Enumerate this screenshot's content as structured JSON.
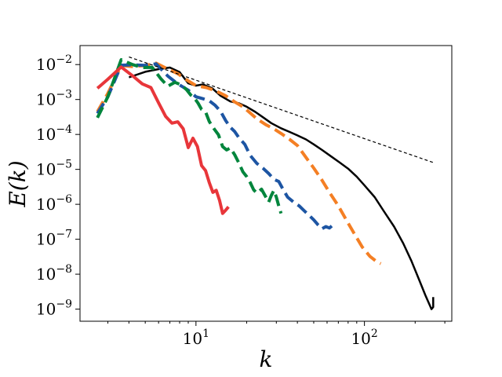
{
  "chart_data": {
    "type": "line",
    "title": "",
    "xlabel": "k",
    "ylabel": "E(k)",
    "xscale": "log",
    "yscale": "log",
    "xlim": [
      2.05,
      330
    ],
    "ylim": [
      4.5e-10,
      0.035
    ],
    "grid": false,
    "x_ticks": [
      {
        "value": 10,
        "mantissa": "10",
        "exp": "1"
      },
      {
        "value": 100,
        "mantissa": "10",
        "exp": "2"
      }
    ],
    "y_ticks": [
      {
        "value": 1e-09,
        "mantissa": "10",
        "exp": "−9"
      },
      {
        "value": 1e-08,
        "mantissa": "10",
        "exp": "−8"
      },
      {
        "value": 1e-07,
        "mantissa": "10",
        "exp": "−7"
      },
      {
        "value": 1e-06,
        "mantissa": "10",
        "exp": "−6"
      },
      {
        "value": 1e-05,
        "mantissa": "10",
        "exp": "−5"
      },
      {
        "value": 0.0001,
        "mantissa": "10",
        "exp": "−4"
      },
      {
        "value": 0.001,
        "mantissa": "10",
        "exp": "−3"
      },
      {
        "value": 0.01,
        "mantissa": "10",
        "exp": "−2"
      }
    ],
    "series": [
      {
        "color": "#000000",
        "dash": "solid",
        "width": 2.5,
        "points": [
          [
            4.0,
            0.0043
          ],
          [
            5.0,
            0.0062
          ],
          [
            6.0,
            0.0074
          ],
          [
            7.0,
            0.0082
          ],
          [
            8.0,
            0.0061
          ],
          [
            9.0,
            0.0029
          ],
          [
            10.0,
            0.0025
          ],
          [
            11.0,
            0.0027
          ],
          [
            12.5,
            0.0021
          ],
          [
            14.0,
            0.00128
          ],
          [
            16.0,
            0.00088
          ],
          [
            18.0,
            0.00078
          ],
          [
            20.0,
            0.00062
          ],
          [
            22.5,
            0.00044
          ],
          [
            25.0,
            0.00031
          ],
          [
            28.0,
            0.00021
          ],
          [
            32.0,
            0.00015
          ],
          [
            36.0,
            0.000118
          ],
          [
            40.0,
            9.4e-05
          ],
          [
            45.0,
            7.2e-05
          ],
          [
            50.0,
            5.2e-05
          ],
          [
            56.0,
            3.6e-05
          ],
          [
            63.0,
            2.4e-05
          ],
          [
            71.0,
            1.6e-05
          ],
          [
            80.0,
            1.05e-05
          ],
          [
            90.0,
            6.2e-06
          ],
          [
            100.0,
            3.5e-06
          ],
          [
            115.0,
            1.6e-06
          ],
          [
            130.0,
            6.5e-07
          ],
          [
            150.0,
            2.3e-07
          ],
          [
            170.0,
            7.6e-08
          ],
          [
            190.0,
            2.4e-08
          ],
          [
            210.0,
            7.4e-09
          ],
          [
            230.0,
            2.5e-09
          ],
          [
            245.0,
            1.25e-09
          ],
          [
            250.0,
            1e-09
          ],
          [
            256.0,
            1.15e-09
          ],
          [
            256.0,
            2.2e-09
          ]
        ]
      },
      {
        "color": "#f47f24",
        "dash": "dashed",
        "width": 4,
        "points": [
          [
            2.6,
            0.00045
          ],
          [
            3.0,
            0.0015
          ],
          [
            3.6,
            0.0094
          ],
          [
            4.2,
            0.0088
          ],
          [
            5.0,
            0.0094
          ],
          [
            5.8,
            0.011
          ],
          [
            6.8,
            0.0075
          ],
          [
            7.8,
            0.0055
          ],
          [
            9.0,
            0.0034
          ],
          [
            10.0,
            0.0025
          ],
          [
            11.5,
            0.0022
          ],
          [
            13.0,
            0.0018
          ],
          [
            15.0,
            0.00128
          ],
          [
            17.0,
            0.00085
          ],
          [
            19.0,
            0.00062
          ],
          [
            21.0,
            0.00041
          ],
          [
            23.0,
            0.00028
          ],
          [
            26.0,
            0.00019
          ],
          [
            29.0,
            0.000145
          ],
          [
            32.0,
            0.000107
          ],
          [
            36.0,
            7.2e-05
          ],
          [
            40.0,
            4.8e-05
          ],
          [
            45.0,
            2.2e-05
          ],
          [
            50.0,
            1.09e-05
          ],
          [
            56.0,
            4.9e-06
          ],
          [
            62.0,
            2.2e-06
          ],
          [
            70.0,
            9e-07
          ],
          [
            78.0,
            3.6e-07
          ],
          [
            87.0,
            1.45e-07
          ],
          [
            97.0,
            6e-08
          ],
          [
            108.0,
            3.2e-08
          ],
          [
            118.0,
            2.3e-08
          ],
          [
            125.0,
            2e-08
          ]
        ]
      },
      {
        "color": "#1d55a3",
        "dash": "dashed",
        "width": 4,
        "points": [
          [
            2.6,
            0.0004
          ],
          [
            3.0,
            0.0012
          ],
          [
            3.6,
            0.0096
          ],
          [
            4.2,
            0.0098
          ],
          [
            5.0,
            0.0095
          ],
          [
            5.8,
            0.0105
          ],
          [
            6.8,
            0.0047
          ],
          [
            7.8,
            0.0028
          ],
          [
            9.0,
            0.00185
          ],
          [
            10.0,
            0.0012
          ],
          [
            11.0,
            0.00105
          ],
          [
            12.0,
            0.00092
          ],
          [
            13.0,
            0.00068
          ],
          [
            14.0,
            0.00046
          ],
          [
            15.0,
            0.00025
          ],
          [
            16.0,
            0.00016
          ],
          [
            17.0,
            0.00012
          ],
          [
            18.0,
            8e-05
          ],
          [
            19.5,
            5.2e-05
          ],
          [
            21.0,
            2.5e-05
          ],
          [
            23.0,
            1.48e-05
          ],
          [
            25.0,
            1.08e-05
          ],
          [
            27.0,
            7.6e-06
          ],
          [
            29.0,
            5.2e-06
          ],
          [
            31.0,
            4.5e-06
          ],
          [
            33.0,
            2.6e-06
          ],
          [
            35.0,
            1.6e-06
          ],
          [
            38.0,
            1.15e-06
          ],
          [
            41.0,
            9e-07
          ],
          [
            44.0,
            6.5e-07
          ],
          [
            47.0,
            4.8e-07
          ],
          [
            50.0,
            3.6e-07
          ],
          [
            53.0,
            2.6e-07
          ],
          [
            56.0,
            2e-07
          ],
          [
            59.0,
            2.3e-07
          ],
          [
            62.0,
            2.1e-07
          ],
          [
            64.0,
            2.4e-07
          ]
        ]
      },
      {
        "color": "#00853c",
        "dash": "dashed",
        "width": 4,
        "points": [
          [
            2.6,
            0.0003
          ],
          [
            3.0,
            0.0012
          ],
          [
            3.6,
            0.0138
          ],
          [
            4.2,
            0.01
          ],
          [
            4.8,
            0.0082
          ],
          [
            5.5,
            0.0083
          ],
          [
            6.2,
            0.0039
          ],
          [
            6.8,
            0.0024
          ],
          [
            7.5,
            0.0031
          ],
          [
            8.2,
            0.0026
          ],
          [
            8.8,
            0.0019
          ],
          [
            9.3,
            0.00135
          ],
          [
            9.8,
            0.0011
          ],
          [
            10.3,
            0.00078
          ],
          [
            10.8,
            0.00052
          ],
          [
            11.4,
            0.00044
          ],
          [
            12.0,
            0.000235
          ],
          [
            12.8,
            0.000145
          ],
          [
            13.6,
            9.8e-05
          ],
          [
            14.4,
            4.5e-05
          ],
          [
            15.2,
            3.6e-05
          ],
          [
            16.0,
            4.1e-05
          ],
          [
            17.0,
            2.6e-05
          ],
          [
            18.0,
            1.5e-05
          ],
          [
            19.0,
            8.5e-06
          ],
          [
            20.0,
            6.2e-06
          ],
          [
            21.0,
            4.2e-06
          ],
          [
            22.0,
            2.6e-06
          ],
          [
            23.0,
            2.1e-06
          ],
          [
            24.5,
            2.7e-06
          ],
          [
            26.0,
            1.6e-06
          ],
          [
            27.0,
            1.15e-06
          ],
          [
            28.0,
            1.8e-06
          ],
          [
            29.0,
            2.5e-06
          ],
          [
            30.0,
            1.6e-06
          ],
          [
            31.0,
            9e-07
          ],
          [
            32.0,
            5.5e-07
          ]
        ]
      },
      {
        "color": "#e8363a",
        "dash": "solid",
        "width": 4,
        "points": [
          [
            2.6,
            0.0021
          ],
          [
            3.0,
            0.0038
          ],
          [
            3.6,
            0.0085
          ],
          [
            4.2,
            0.0048
          ],
          [
            4.8,
            0.0028
          ],
          [
            5.4,
            0.0022
          ],
          [
            6.0,
            0.0008
          ],
          [
            6.6,
            0.00033
          ],
          [
            7.2,
            0.00021
          ],
          [
            7.8,
            0.00023
          ],
          [
            8.4,
            0.000145
          ],
          [
            9.0,
            4.2e-05
          ],
          [
            9.6,
            7.8e-05
          ],
          [
            10.2,
            4.5e-05
          ],
          [
            10.8,
            1.28e-05
          ],
          [
            11.4,
            9.2e-06
          ],
          [
            12.0,
            4.2e-06
          ],
          [
            12.6,
            2.2e-06
          ],
          [
            13.2,
            2.5e-06
          ],
          [
            13.8,
            1.3e-06
          ],
          [
            14.4,
            5.5e-07
          ],
          [
            15.0,
            6.8e-07
          ],
          [
            15.6,
            8.5e-07
          ]
        ]
      },
      {
        "color": "#000000",
        "dash": "dotted",
        "width": 1.2,
        "points": [
          [
            4.0,
            0.0165
          ],
          [
            256.0,
            1.57e-05
          ]
        ]
      }
    ]
  }
}
